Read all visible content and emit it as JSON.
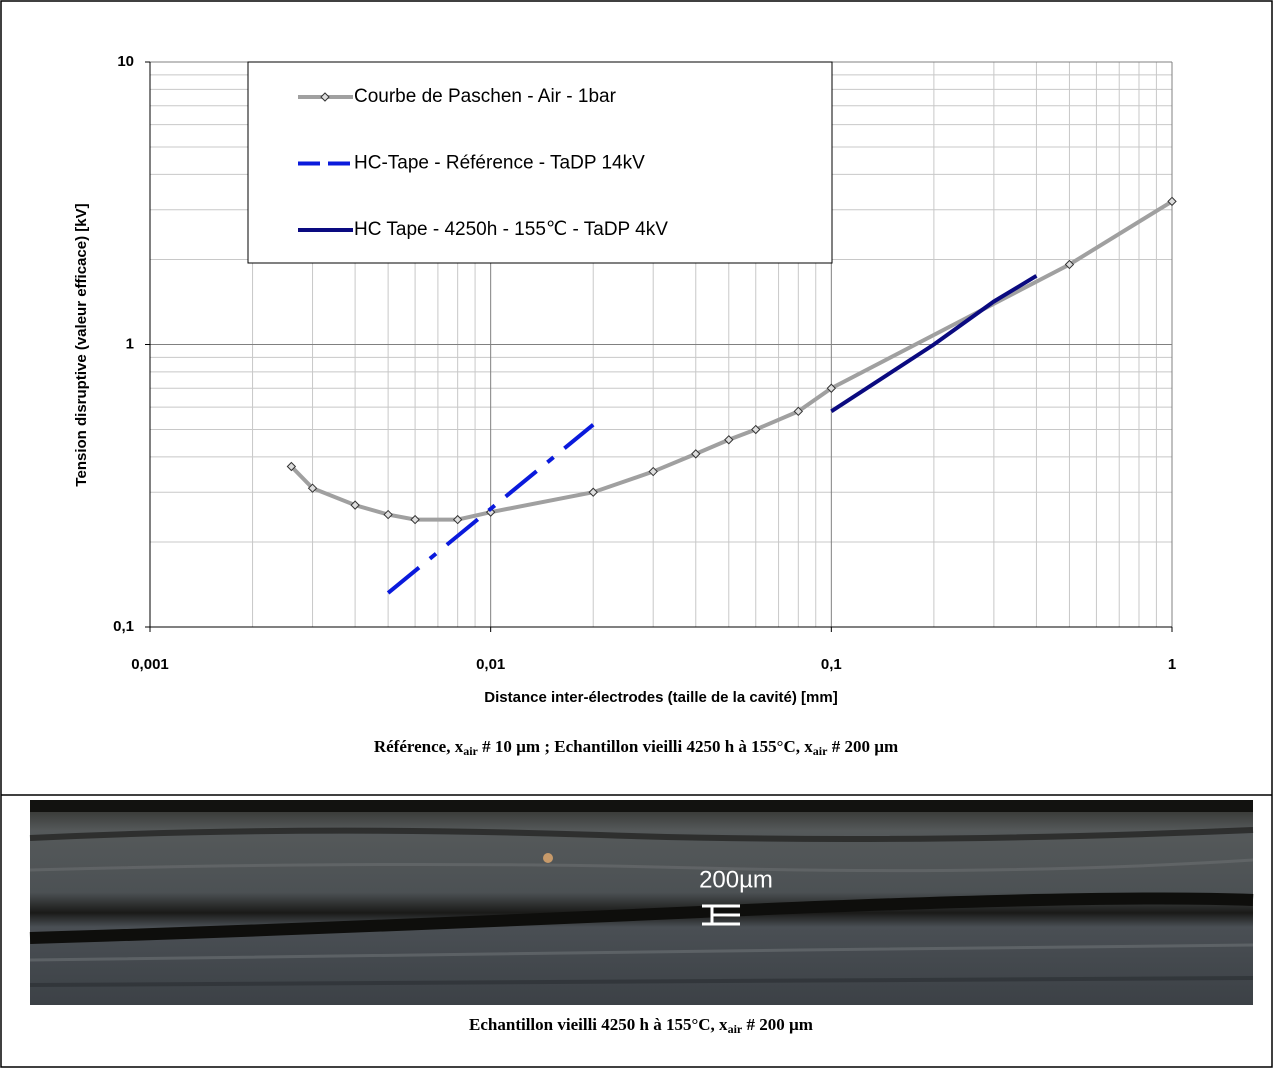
{
  "chart_data": {
    "type": "line",
    "x_label": "Distance inter-électrodes (taille de la cavité) [mm]",
    "y_label": "Tension disruptive (valeur efficace) [kV]",
    "x_log": true,
    "y_log": true,
    "grid": true,
    "legend": "upper left",
    "xlim": [
      0.001,
      1
    ],
    "xticks": [
      {
        "value": 0.001,
        "label": "0,001"
      },
      {
        "value": 0.01,
        "label": "0,01"
      },
      {
        "value": 0.1,
        "label": "0,1"
      },
      1
    ],
    "ylim": [
      0.1,
      10
    ],
    "yticks": [
      {
        "value": 0.1,
        "label": "0,1"
      },
      1,
      10
    ],
    "series": [
      {
        "name": "Courbe de Paschen - Air - 1bar",
        "color": "#a0a0a0",
        "line_style": "solid",
        "marker": "diamond",
        "x": [
          0.0026,
          0.003,
          0.004,
          0.005,
          0.006,
          0.008,
          0.01,
          0.02,
          0.03,
          0.04,
          0.05,
          0.06,
          0.08,
          0.1,
          0.5,
          1
        ],
        "values": [
          0.37,
          0.31,
          0.27,
          0.25,
          0.24,
          0.24,
          0.255,
          0.3,
          0.355,
          0.41,
          0.46,
          0.5,
          0.58,
          0.7,
          1.92,
          3.21
        ]
      },
      {
        "name": "HC-Tape - Référence - TaDP 14kV",
        "color": "#0a1adc",
        "line_style": "dashdot",
        "marker": "none",
        "x": [
          0.005,
          0.02
        ],
        "values": [
          0.132,
          0.52
        ]
      },
      {
        "name": "HC Tape - 4250h - 155℃ - TaDP 4kV",
        "color": "#0a0a80",
        "line_style": "solid",
        "marker": "none",
        "x": [
          0.1,
          0.2,
          0.3,
          0.4
        ],
        "values": [
          0.58,
          1.0,
          1.42,
          1.75
        ]
      }
    ]
  },
  "caption_top": [
    "Référence, x",
    "air",
    " # 10 µm ; Echantillon vieilli 4250 h à 155°C, x",
    "air",
    " # 200 µm"
  ],
  "photo": {
    "scale_label": "200µm"
  },
  "caption_bottom": [
    "Echantillon vieilli 4250 h à 155°C, x",
    "air",
    " # 200 µm"
  ]
}
